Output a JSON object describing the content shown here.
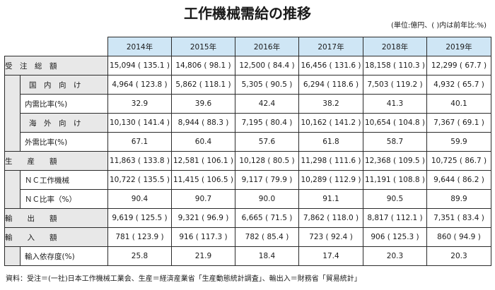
{
  "title": "工作機械需給の推移",
  "unit_note": "(単位:億円、( )内は前年比:%)",
  "years": [
    "2014年",
    "2015年",
    "2016年",
    "2017年",
    "2018年",
    "2019年"
  ],
  "rows": {
    "juchu_sougaku": {
      "label": "受　注　総　額",
      "cells": [
        "15,094 ( 135.1 )",
        "14,806 ( 98.1 )",
        "12,500 ( 84.4 )",
        "16,456 ( 131.6 )",
        "18,158 ( 110.3 )",
        "12,299 ( 67.7 )"
      ]
    },
    "kokunai": {
      "label": "国　内　向　け",
      "cells": [
        "4,964 ( 123.8 )",
        "5,862 ( 118.1 )",
        "5,305 ( 90.5 )",
        "6,294 ( 118.6 )",
        "7,503 ( 119.2 )",
        "4,932 ( 65.7 )"
      ]
    },
    "naiju_hiritsu": {
      "label": "内需比率(%)",
      "cells": [
        "32.9",
        "39.6",
        "42.4",
        "38.2",
        "41.3",
        "40.1"
      ]
    },
    "kaigai": {
      "label": "海　外　向　け",
      "cells": [
        "10,130 ( 141.4 )",
        "8,944 ( 88.3 )",
        "7,195 ( 80.4 )",
        "10,162 ( 141.2 )",
        "10,654 ( 104.8 )",
        "7,367 ( 69.1 )"
      ]
    },
    "gaiju_hiritsu": {
      "label": "外需比率(%)",
      "cells": [
        "67.1",
        "60.4",
        "57.6",
        "61.8",
        "58.7",
        "59.9"
      ]
    },
    "seisan": {
      "label": "生　　産　　額",
      "cells": [
        "11,863 ( 133.8 )",
        "12,581 ( 106.1 )",
        "10,128 ( 80.5 )",
        "11,298 ( 111.6 )",
        "12,368 ( 109.5 )",
        "10,725 ( 86.7 )"
      ]
    },
    "nc_kikai": {
      "label": "ＮＣ工作機械",
      "cells": [
        "10,722 ( 135.5 )",
        "11,415 ( 106.5 )",
        "9,117 ( 79.9 )",
        "10,289 ( 112.9 )",
        "11,191 ( 108.8 )",
        "9,644 ( 86.2 )"
      ]
    },
    "nc_hiritsu": {
      "label": "ＮＣ比率（%）",
      "cells": [
        "90.4",
        "90.7",
        "90.0",
        "91.1",
        "90.5",
        "89.9"
      ]
    },
    "yushutsu": {
      "label": "輸　　出　　額",
      "cells": [
        "9,619 ( 125.5 )",
        "9,321 ( 96.9 )",
        "6,665 ( 71.5 )",
        "7,862 ( 118.0 )",
        "8,817 ( 112.1 )",
        "7,351 ( 83.4 )"
      ]
    },
    "yunyu": {
      "label": "輸　　入　　額",
      "cells": [
        "781 ( 123.9 )",
        "916 ( 117.3 )",
        "782 ( 85.4 )",
        "723 ( 92.4 )",
        "906 ( 125.3 )",
        "860 ( 94.9 )"
      ]
    },
    "yunyu_izon": {
      "label": "輸入依存度(%)",
      "cells": [
        "25.8",
        "21.9",
        "18.4",
        "17.4",
        "20.3",
        "20.3"
      ]
    }
  },
  "source": "資料：受注＝(一社)日本工作機械工業会、生産＝経済産業省「生産動態統計調査」、輸出入＝財務省「貿易統計」",
  "colors": {
    "header_highlight": "#cfe6f5",
    "label_bg": "#e8e8e8"
  }
}
